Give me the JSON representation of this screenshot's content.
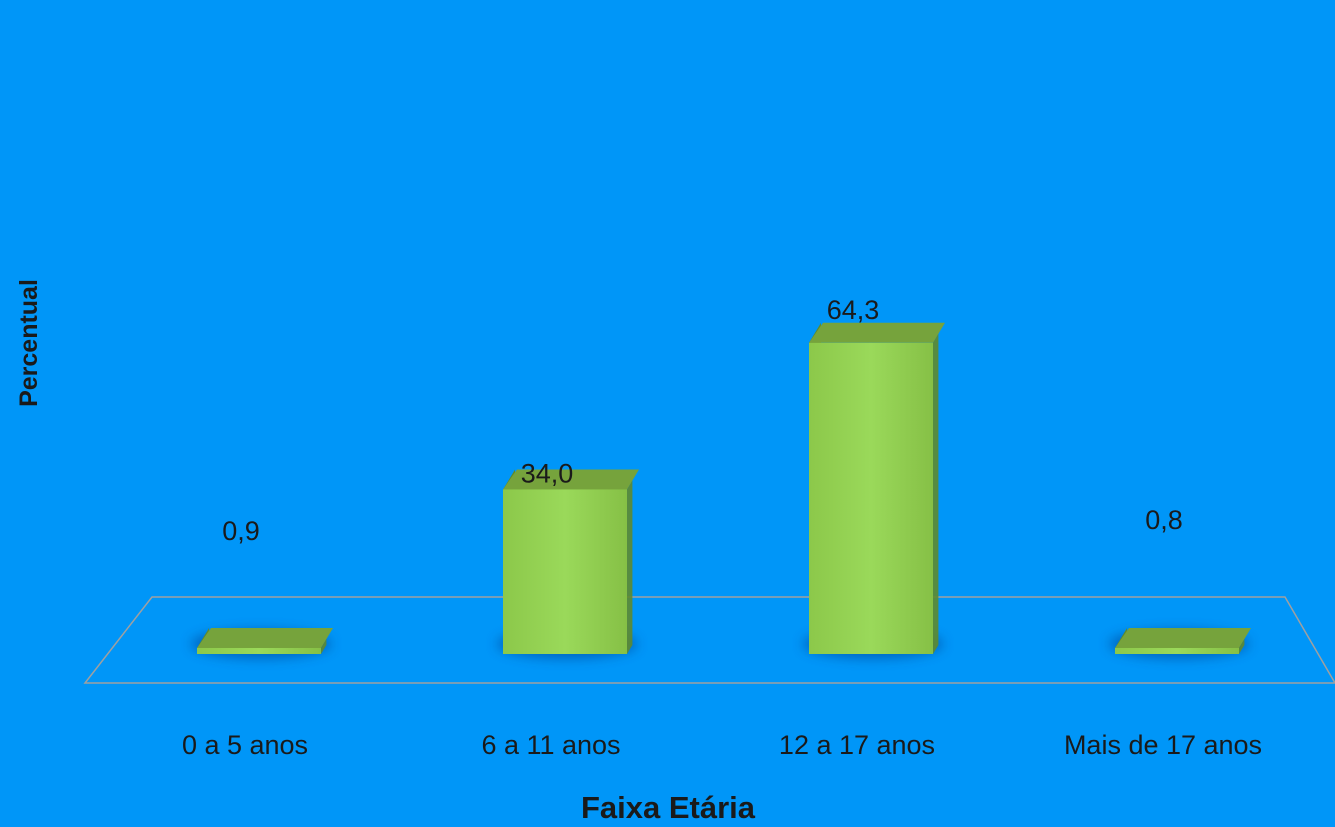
{
  "chart_data": {
    "type": "bar",
    "categories": [
      "0 a 5 anos",
      "6 a 11 anos",
      "12 a 17 anos",
      "Mais de 17 anos"
    ],
    "values": [
      0.9,
      34.0,
      64.3,
      0.8
    ],
    "value_labels": [
      "0,9",
      "34,0",
      "64,3",
      "0,8"
    ],
    "xlabel": "Faixa Etária",
    "ylabel": "Percentual",
    "ylim": [
      0,
      65
    ],
    "grid": false,
    "legend": "none",
    "style": "3d-column",
    "colors": {
      "background": "#0096f8",
      "bar_front": "#92d050",
      "bar_top": "#76a33c",
      "bar_side": "#5f8a2c",
      "floor_line": "#9a9a9a",
      "text": "#1a1a1a"
    }
  }
}
